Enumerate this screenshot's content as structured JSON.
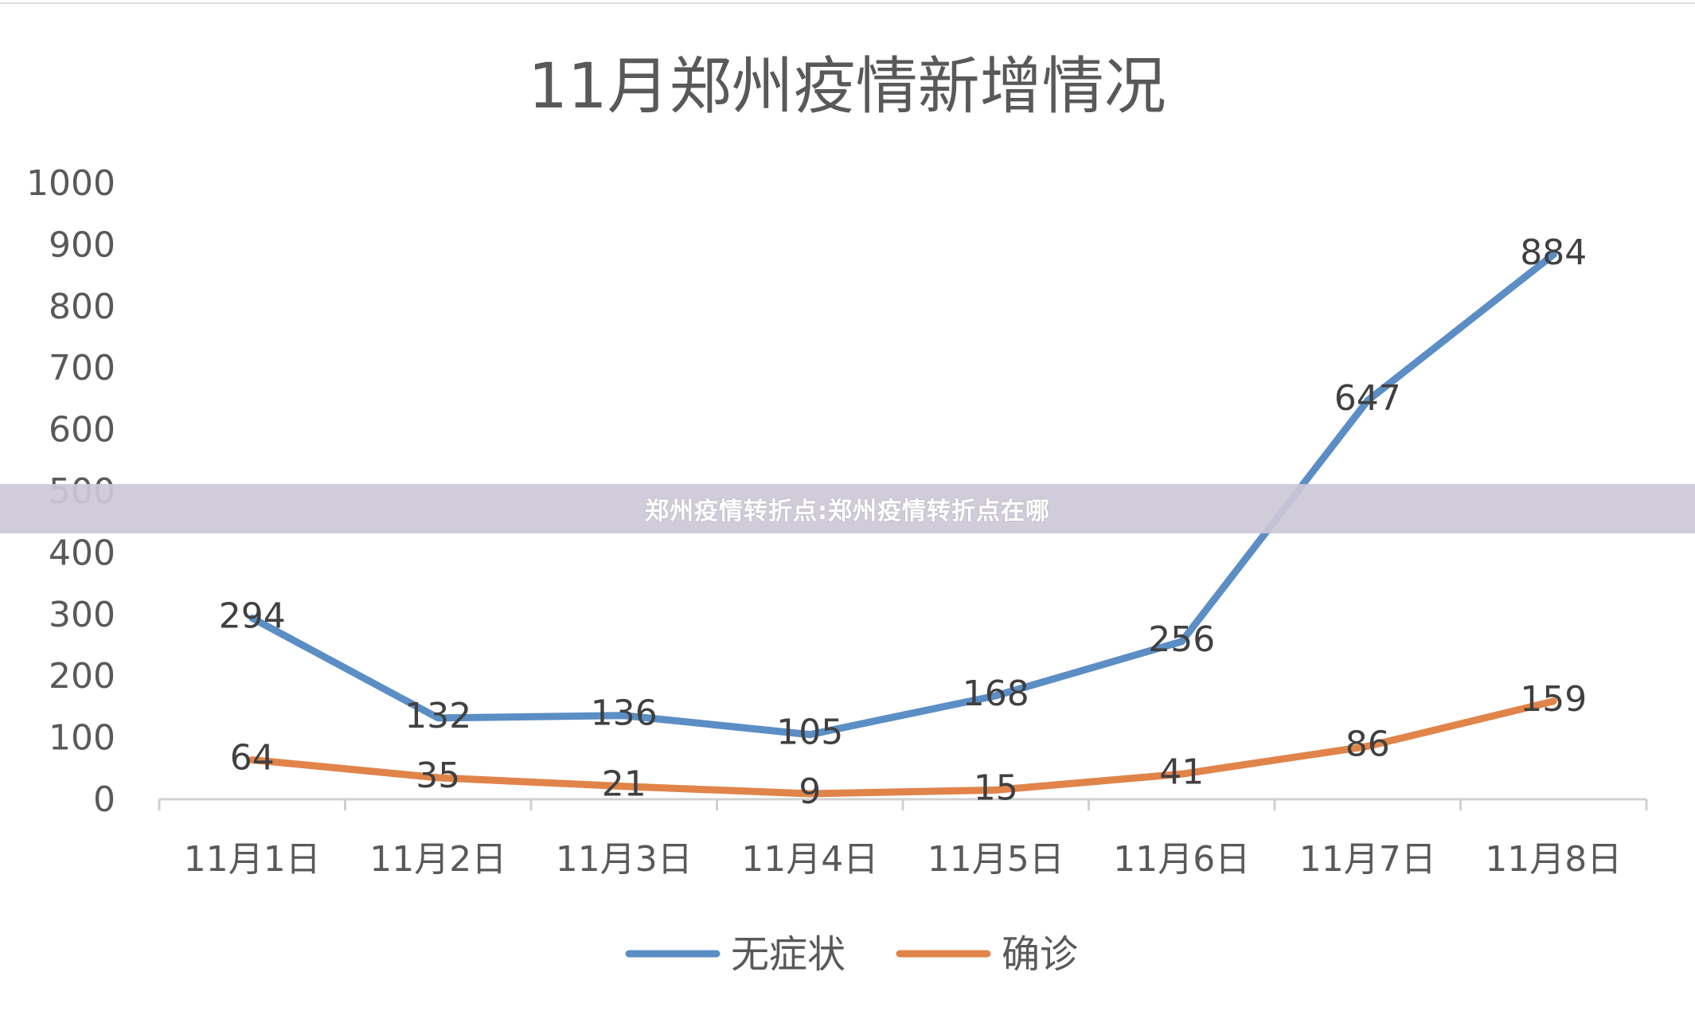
{
  "banner": {
    "text": "郑州疫情转折点:郑州疫情转折点在哪"
  },
  "chart_data": {
    "type": "line",
    "title": "11月郑州疫情新增情况",
    "categories": [
      "11月1日",
      "11月2日",
      "11月3日",
      "11月4日",
      "11月5日",
      "11月6日",
      "11月7日",
      "11月8日"
    ],
    "series": [
      {
        "name": "无症状",
        "color": "#5b8ec4",
        "values": [
          294,
          132,
          136,
          105,
          168,
          256,
          647,
          884
        ]
      },
      {
        "name": "确诊",
        "color": "#e0844a",
        "values": [
          64,
          35,
          21,
          9,
          15,
          41,
          86,
          159
        ]
      }
    ],
    "y_ticks": [
      "0",
      "100",
      "200",
      "300",
      "400",
      "500",
      "600",
      "700",
      "800",
      "900",
      "1000"
    ],
    "ylim": [
      0,
      1000
    ],
    "grid": false,
    "legend_position": "bottom",
    "data_labels": true
  }
}
